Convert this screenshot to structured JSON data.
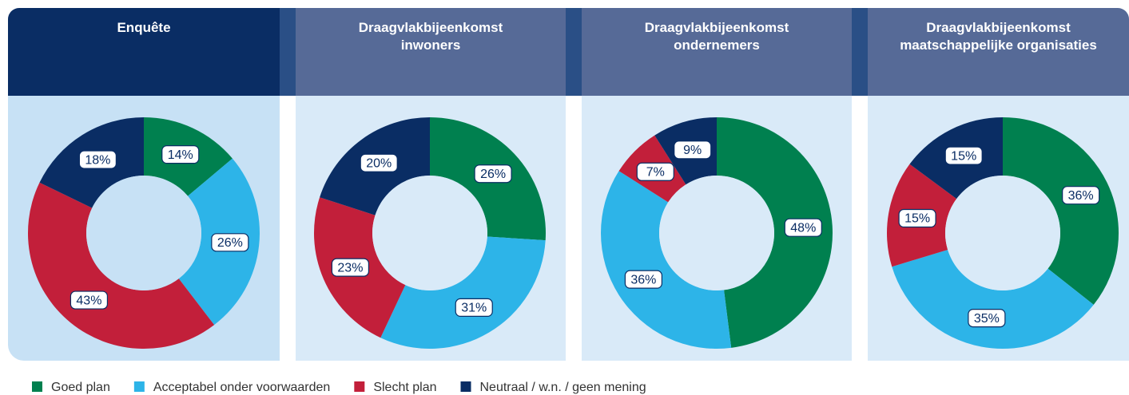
{
  "chart_data": [
    {
      "type": "pie",
      "title": "Enquête",
      "categories": [
        "Goed plan",
        "Acceptabel onder voorwaarden",
        "Slecht plan",
        "Neutraal / w.n. / geen mening"
      ],
      "colors": [
        "#00804f",
        "#2db4e8",
        "#c21f3a",
        "#0a2d64"
      ],
      "values": [
        14,
        26,
        43,
        18
      ],
      "value_labels": [
        "14%",
        "26%",
        "43%",
        "18%"
      ]
    },
    {
      "type": "pie",
      "title": "Draagvlakbijeenkomst inwoners",
      "categories": [
        "Goed plan",
        "Acceptabel onder voorwaarden",
        "Slecht plan",
        "Neutraal / w.n. / geen mening"
      ],
      "colors": [
        "#00804f",
        "#2db4e8",
        "#c21f3a",
        "#0a2d64"
      ],
      "values": [
        26,
        31,
        23,
        20
      ],
      "value_labels": [
        "26%",
        "31%",
        "23%",
        "20%"
      ]
    },
    {
      "type": "pie",
      "title": "Draagvlakbijeenkomst ondernemers",
      "categories": [
        "Goed plan",
        "Acceptabel onder voorwaarden",
        "Slecht plan",
        "Neutraal / w.n. / geen mening"
      ],
      "colors": [
        "#00804f",
        "#2db4e8",
        "#c21f3a",
        "#0a2d64"
      ],
      "values": [
        48,
        36,
        7,
        9
      ],
      "value_labels": [
        "48%",
        "36%",
        "7%",
        "9%"
      ]
    },
    {
      "type": "pie",
      "title": "Draagvlakbijeenkomst maatschappelijke organisaties",
      "categories": [
        "Goed plan",
        "Acceptabel onder voorwaarden",
        "Slecht plan",
        "Neutraal / w.n. / geen mening"
      ],
      "colors": [
        "#00804f",
        "#2db4e8",
        "#c21f3a",
        "#0a2d64"
      ],
      "values": [
        36,
        35,
        15,
        15
      ],
      "value_labels": [
        "36%",
        "35%",
        "15%",
        "15%"
      ]
    }
  ]
}
